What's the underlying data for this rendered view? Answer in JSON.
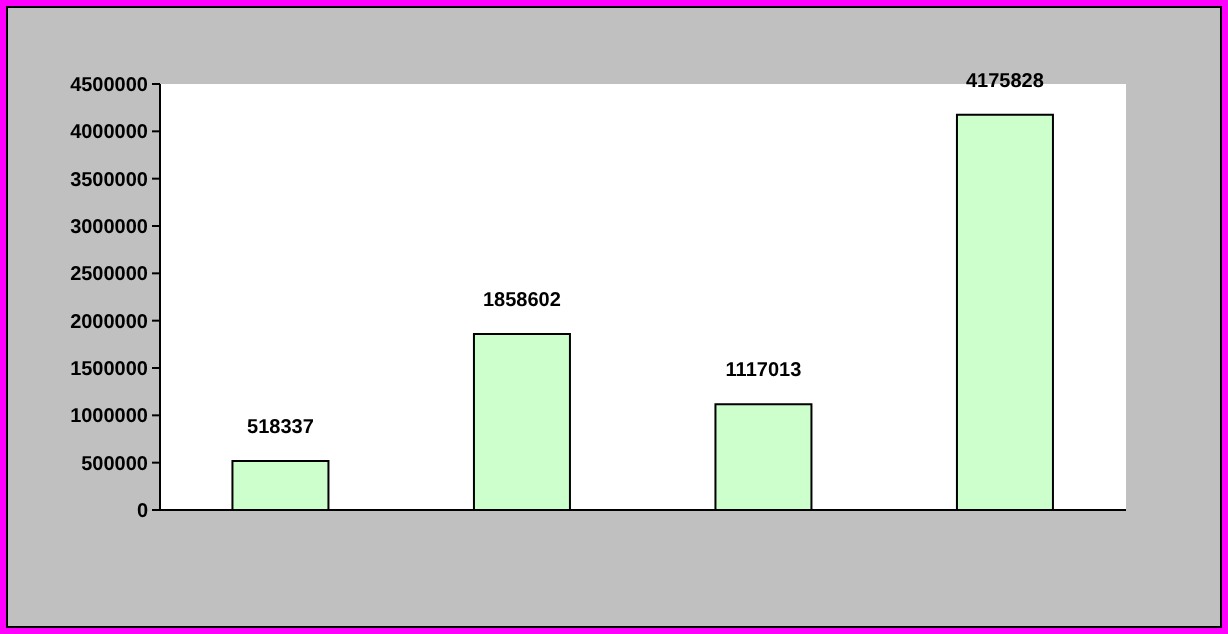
{
  "chart_data": {
    "type": "bar",
    "categories": [
      null,
      null,
      null,
      null
    ],
    "values": [
      518337,
      1858602,
      1117013,
      4175828
    ],
    "color": "#ccffcc",
    "ylim": [
      0,
      4500000
    ],
    "yticks": [
      0,
      500000,
      1000000,
      1500000,
      2000000,
      2500000,
      3000000,
      3500000,
      4000000,
      4500000
    ],
    "data_labels": true
  }
}
